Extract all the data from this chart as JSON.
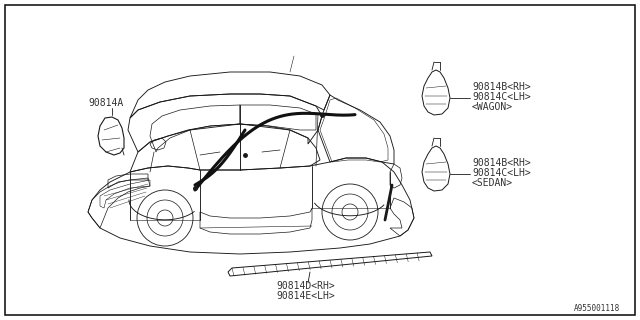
{
  "background_color": "#ffffff",
  "part_number_id": "A955001118",
  "line_color": "#1a1a1a",
  "text_color": "#333333",
  "font_size": 7.0,
  "fig_width": 6.4,
  "fig_height": 3.2,
  "label_A": "90814A",
  "label_B_wagon_1": "90814B<RH>",
  "label_B_wagon_2": "90814C<LH>",
  "label_B_wagon_3": "<WAGON>",
  "label_B_sedan_1": "90814B<RH>",
  "label_B_sedan_2": "90814C<LH>",
  "label_B_sedan_3": "<SEDAN>",
  "label_DE_1": "90814D<RH>",
  "label_DE_2": "90814E<LH>"
}
